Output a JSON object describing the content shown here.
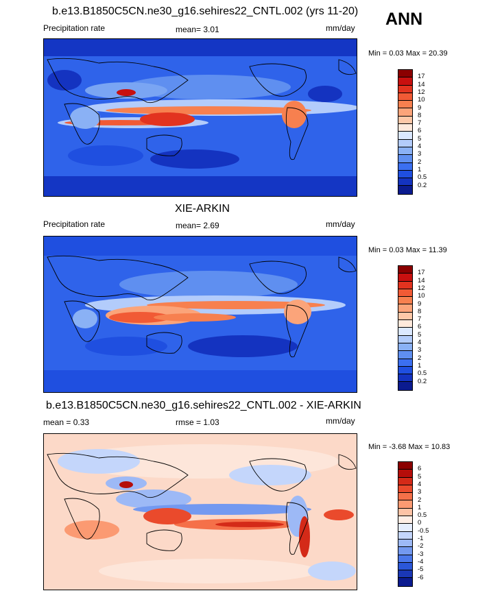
{
  "season": "ANN",
  "panels": [
    {
      "title": "b.e13.B1850C5CN.ne30_g16.sehires22_CNTL.002 (yrs 11-20)",
      "left_label": "Precipitation rate",
      "center_label": "mean=   3.01",
      "units": "mm/day",
      "minmax": "Min =  0.03 Max =  20.39",
      "colorbar_labels": [
        "17",
        "14",
        "12",
        "10",
        "9",
        "8",
        "7",
        "6",
        "5",
        "4",
        "3",
        "2",
        "1",
        "0.5",
        "0.2"
      ],
      "colorbar_colors": [
        "#8b0000",
        "#c8100f",
        "#e2331f",
        "#f15a35",
        "#f7804f",
        "#fba47a",
        "#fdc8a8",
        "#fee9dc",
        "#dbe8ff",
        "#b3ccfb",
        "#8ab1f5",
        "#5f8ff0",
        "#3b6ff0",
        "#1f4fe0",
        "#1433c0",
        "#0b1b8f"
      ]
    },
    {
      "title": "XIE-ARKIN",
      "left_label": "Precipitation rate",
      "center_label": "mean=   2.69",
      "units": "mm/day",
      "minmax": "Min =  0.03 Max =  11.39",
      "colorbar_labels": [
        "17",
        "14",
        "12",
        "10",
        "9",
        "8",
        "7",
        "6",
        "5",
        "4",
        "3",
        "2",
        "1",
        "0.5",
        "0.2"
      ],
      "colorbar_colors": [
        "#8b0000",
        "#c8100f",
        "#e2331f",
        "#f15a35",
        "#f7804f",
        "#fba47a",
        "#fdc8a8",
        "#fee9dc",
        "#dbe8ff",
        "#b3ccfb",
        "#8ab1f5",
        "#5f8ff0",
        "#3b6ff0",
        "#1f4fe0",
        "#1433c0",
        "#0b1b8f"
      ]
    },
    {
      "title": "b.e13.B1850C5CN.ne30_g16.sehires22_CNTL.002 - XIE-ARKIN",
      "left_label": "mean =   0.33",
      "center_label": "rmse =   1.03",
      "units": "mm/day",
      "minmax": "Min =  -3.68 Max =  10.83",
      "colorbar_labels": [
        "6",
        "5",
        "4",
        "3",
        "2",
        "1",
        "0.5",
        "0",
        "-0.5",
        "-1",
        "-2",
        "-3",
        "-4",
        "-5",
        "-6"
      ],
      "colorbar_colors": [
        "#8b0000",
        "#b50d0a",
        "#d42a18",
        "#ea4a2c",
        "#f57049",
        "#fb9a72",
        "#fdc3a6",
        "#feeee6",
        "#e6eeff",
        "#c4d6fb",
        "#9db9f6",
        "#7399f0",
        "#4a77ea",
        "#2b57d8",
        "#1a37b6",
        "#0b1b8f"
      ]
    }
  ]
}
